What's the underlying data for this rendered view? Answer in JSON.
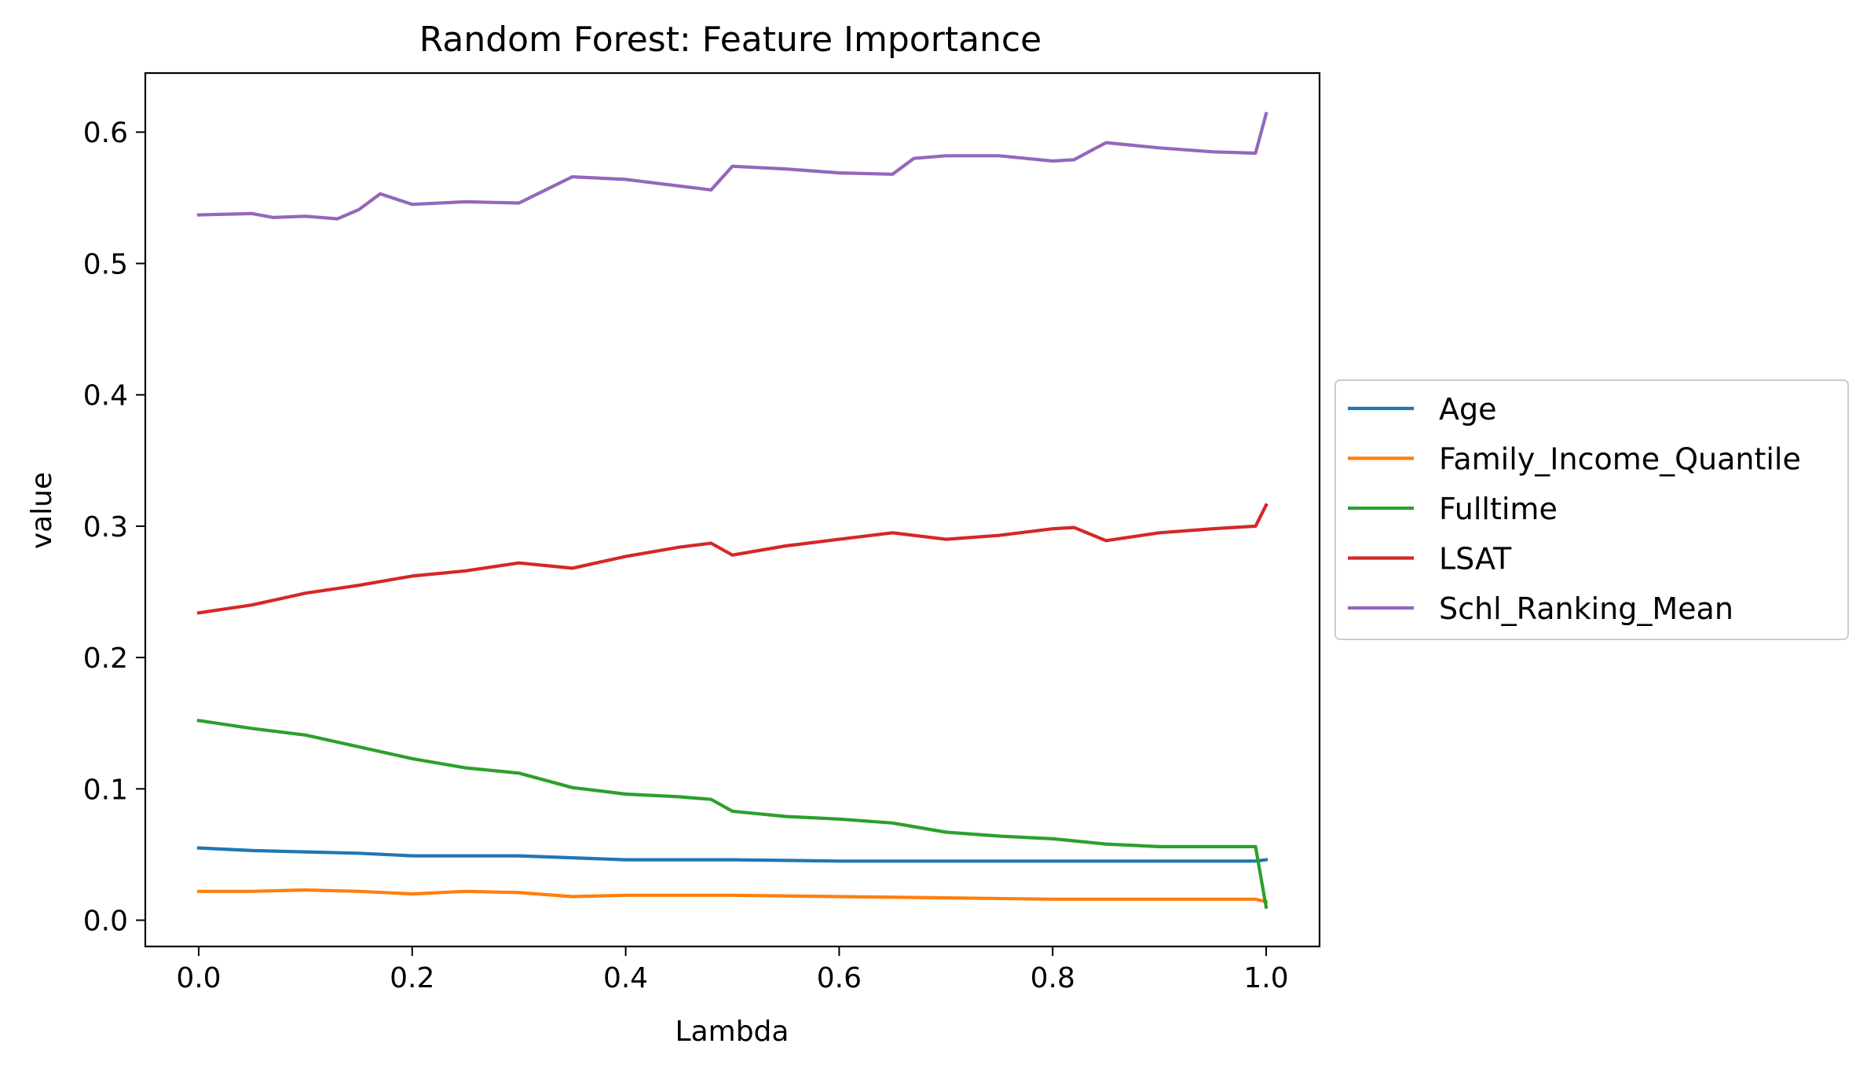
{
  "chart_data": {
    "type": "line",
    "title": "Random Forest: Feature Importance",
    "xlabel": "Lambda",
    "ylabel": "value",
    "xlim": [
      -0.05,
      1.05
    ],
    "ylim": [
      -0.02,
      0.645
    ],
    "xticks": [
      0.0,
      0.2,
      0.4,
      0.6,
      0.8,
      1.0
    ],
    "xtick_labels": [
      "0.0",
      "0.2",
      "0.4",
      "0.6",
      "0.8",
      "1.0"
    ],
    "yticks": [
      0.0,
      0.1,
      0.2,
      0.3,
      0.4,
      0.5,
      0.6
    ],
    "ytick_labels": [
      "0.0",
      "0.1",
      "0.2",
      "0.3",
      "0.4",
      "0.5",
      "0.6"
    ],
    "grid": false,
    "legend_placement": "outside-right",
    "x": [
      0.0,
      0.1,
      0.2,
      0.3,
      0.4,
      0.5,
      0.6,
      0.7,
      0.8,
      0.9,
      0.99,
      1.0
    ],
    "series": [
      {
        "name": "Age",
        "color": "#1f77b4",
        "x": [
          0.0,
          0.05,
          0.1,
          0.15,
          0.2,
          0.3,
          0.4,
          0.5,
          0.6,
          0.7,
          0.8,
          0.9,
          0.99,
          1.0
        ],
        "y": [
          0.055,
          0.053,
          0.052,
          0.051,
          0.049,
          0.049,
          0.046,
          0.046,
          0.045,
          0.045,
          0.045,
          0.045,
          0.045,
          0.046
        ]
      },
      {
        "name": "Family_Income_Quantile",
        "color": "#ff7f0e",
        "x": [
          0.0,
          0.05,
          0.1,
          0.15,
          0.2,
          0.25,
          0.3,
          0.35,
          0.4,
          0.5,
          0.6,
          0.7,
          0.8,
          0.9,
          0.99,
          1.0
        ],
        "y": [
          0.022,
          0.022,
          0.023,
          0.022,
          0.02,
          0.022,
          0.021,
          0.018,
          0.019,
          0.019,
          0.018,
          0.017,
          0.016,
          0.016,
          0.016,
          0.014
        ]
      },
      {
        "name": "Fulltime",
        "color": "#2ca02c",
        "x": [
          0.0,
          0.05,
          0.1,
          0.15,
          0.2,
          0.25,
          0.3,
          0.35,
          0.4,
          0.45,
          0.48,
          0.5,
          0.55,
          0.6,
          0.65,
          0.7,
          0.75,
          0.8,
          0.85,
          0.9,
          0.99,
          1.0
        ],
        "y": [
          0.152,
          0.146,
          0.141,
          0.132,
          0.123,
          0.116,
          0.112,
          0.101,
          0.096,
          0.094,
          0.092,
          0.083,
          0.079,
          0.077,
          0.074,
          0.067,
          0.064,
          0.062,
          0.058,
          0.056,
          0.056,
          0.01
        ]
      },
      {
        "name": "LSAT",
        "color": "#d62728",
        "x": [
          0.0,
          0.05,
          0.1,
          0.15,
          0.2,
          0.25,
          0.3,
          0.35,
          0.4,
          0.45,
          0.48,
          0.5,
          0.55,
          0.6,
          0.65,
          0.7,
          0.75,
          0.8,
          0.82,
          0.85,
          0.9,
          0.95,
          0.99,
          1.0
        ],
        "y": [
          0.234,
          0.24,
          0.249,
          0.255,
          0.262,
          0.266,
          0.272,
          0.268,
          0.277,
          0.284,
          0.287,
          0.278,
          0.285,
          0.29,
          0.295,
          0.29,
          0.293,
          0.298,
          0.299,
          0.289,
          0.295,
          0.298,
          0.3,
          0.316
        ]
      },
      {
        "name": "Schl_Ranking_Mean",
        "color": "#9467bd",
        "x": [
          0.0,
          0.05,
          0.07,
          0.1,
          0.13,
          0.15,
          0.17,
          0.2,
          0.25,
          0.3,
          0.35,
          0.4,
          0.45,
          0.48,
          0.5,
          0.55,
          0.6,
          0.65,
          0.67,
          0.7,
          0.75,
          0.8,
          0.82,
          0.85,
          0.9,
          0.95,
          0.99,
          1.0
        ],
        "y": [
          0.537,
          0.538,
          0.535,
          0.536,
          0.534,
          0.541,
          0.553,
          0.545,
          0.547,
          0.546,
          0.566,
          0.564,
          0.559,
          0.556,
          0.574,
          0.572,
          0.569,
          0.568,
          0.58,
          0.582,
          0.582,
          0.578,
          0.579,
          0.592,
          0.588,
          0.585,
          0.584,
          0.614
        ]
      }
    ]
  }
}
